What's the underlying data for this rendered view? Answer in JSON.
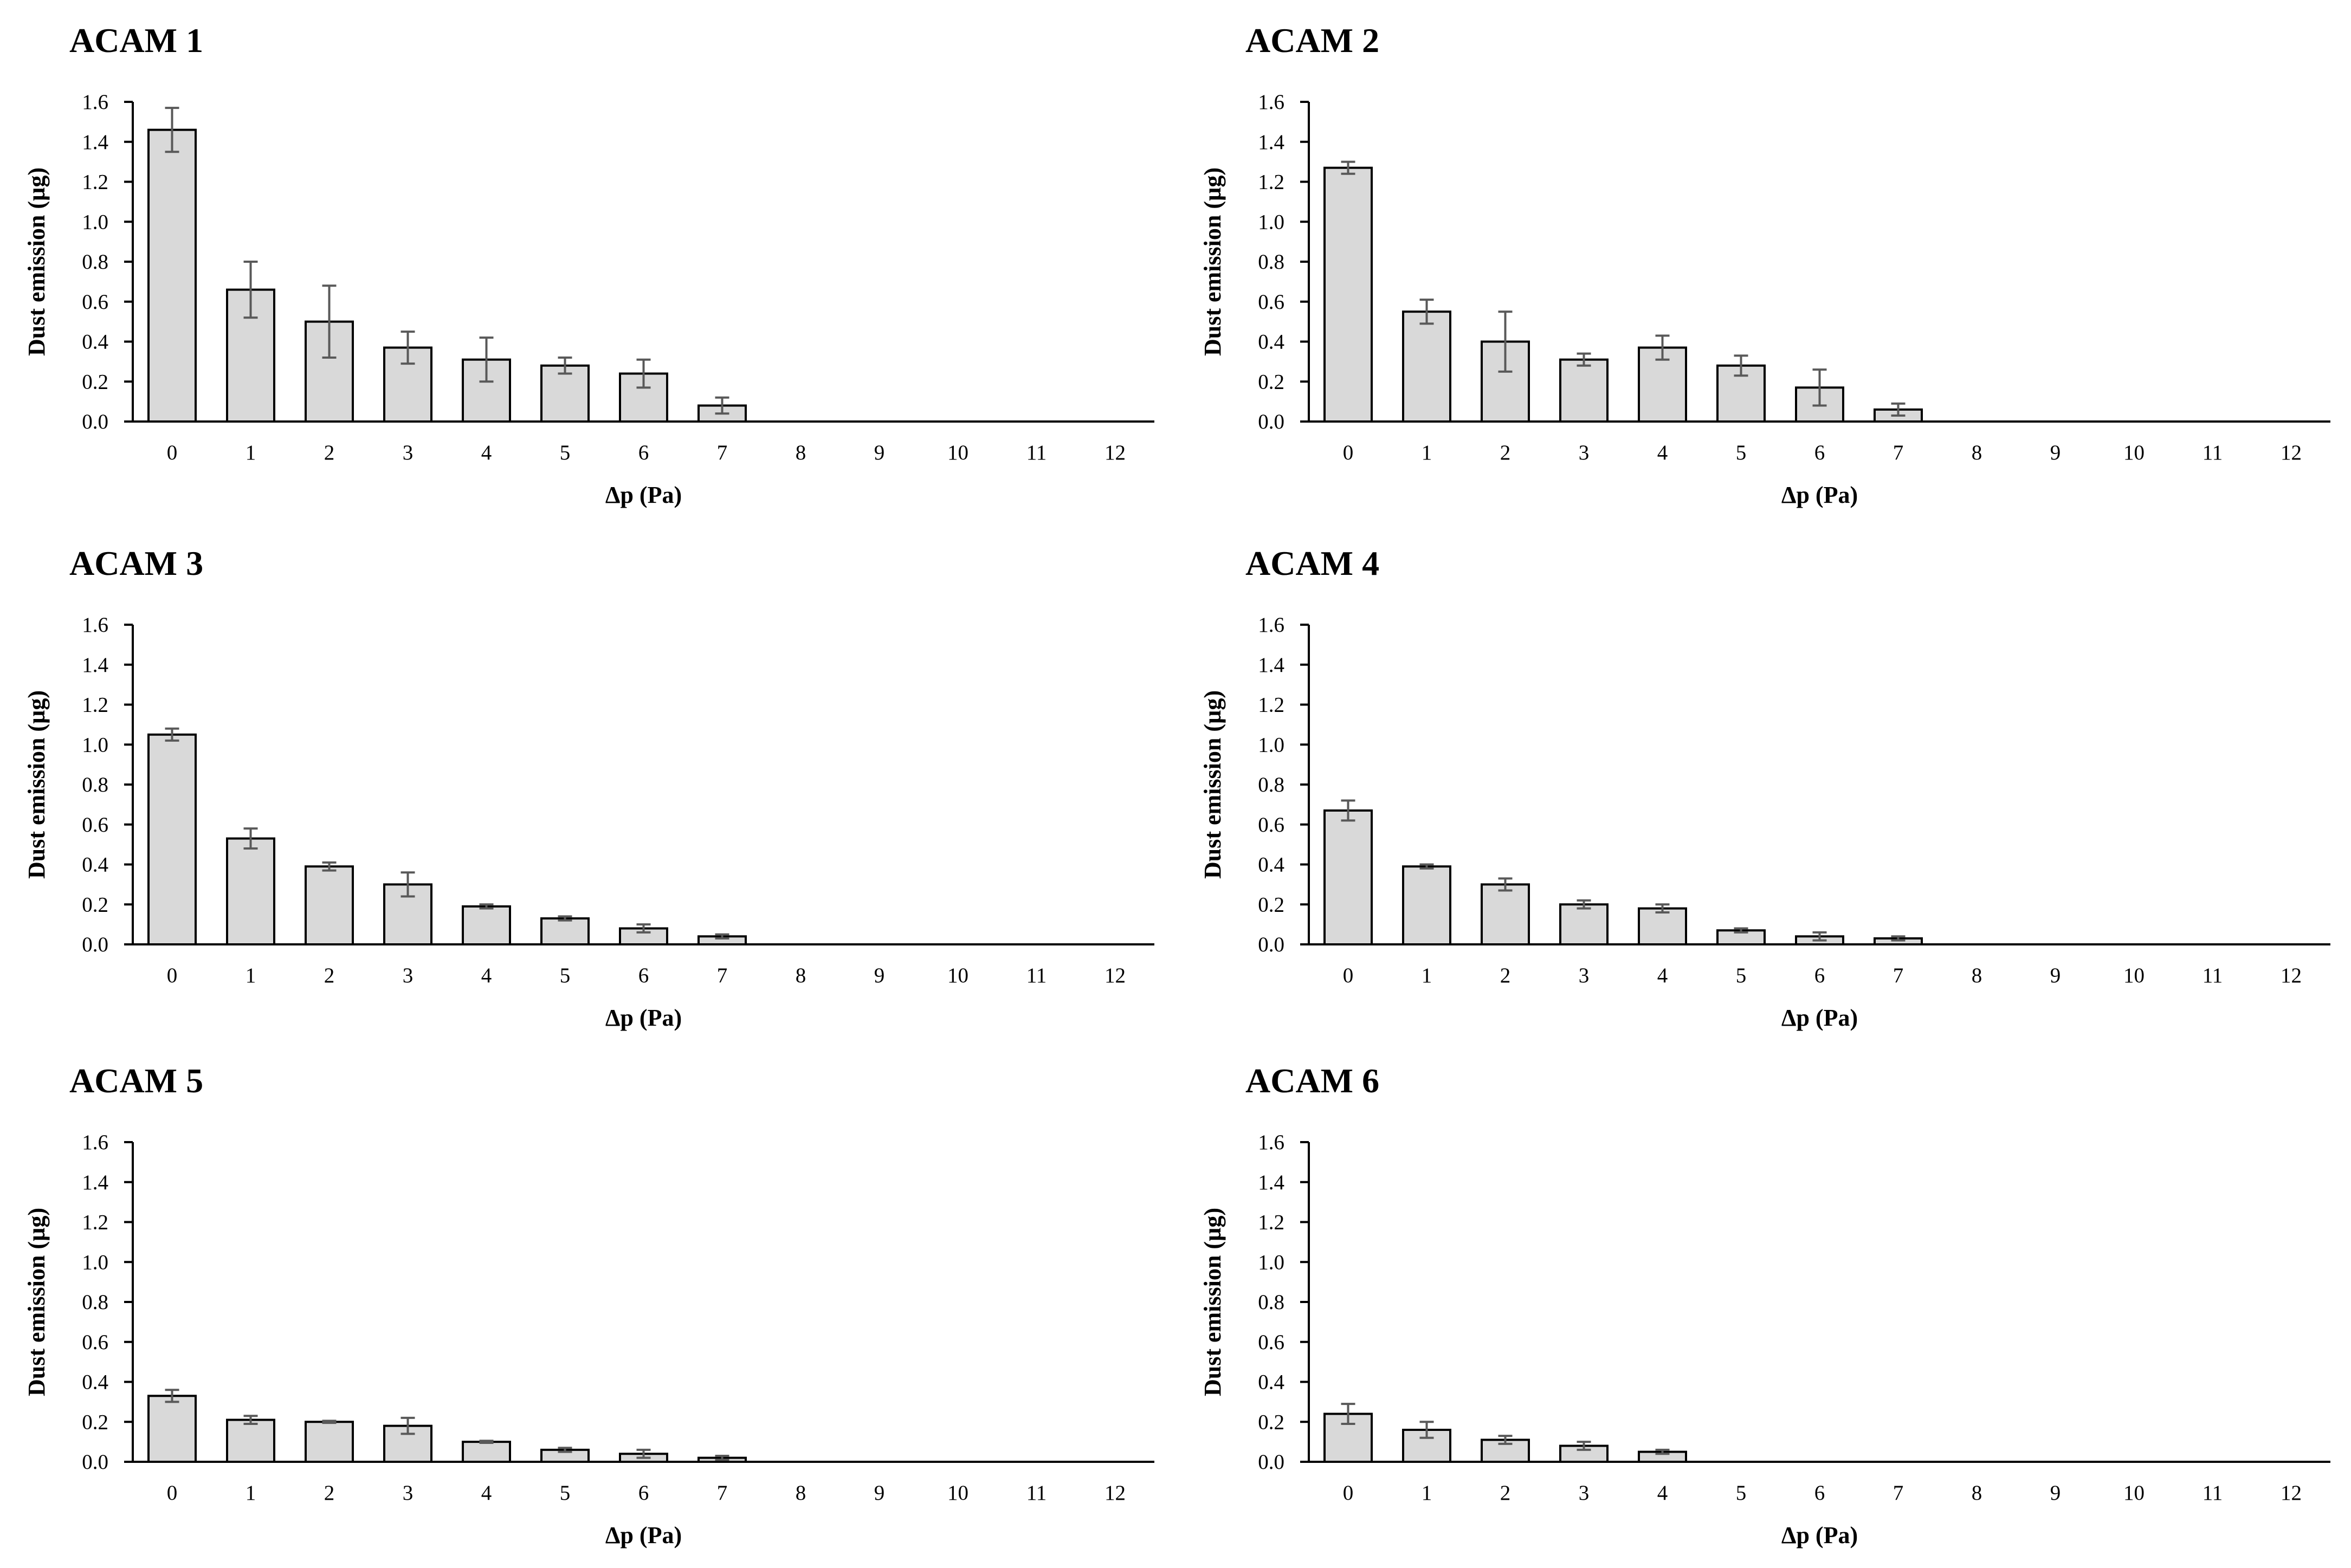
{
  "colors": {
    "bar_fill": "#d9d9d9",
    "bar_stroke": "#000000",
    "error_bar": "#595959",
    "axis": "#000000"
  },
  "chart_data": [
    {
      "type": "bar",
      "title": "ACAM 1",
      "xlabel": "Δp (Pa)",
      "ylabel": "Dust emission (µg)",
      "categories": [
        "0",
        "1",
        "2",
        "3",
        "4",
        "5",
        "6",
        "7",
        "8",
        "9",
        "10",
        "11",
        "12"
      ],
      "values": [
        1.46,
        0.66,
        0.5,
        0.37,
        0.31,
        0.28,
        0.24,
        0.08,
        0,
        0,
        0,
        0,
        0
      ],
      "errors": [
        0.11,
        0.14,
        0.18,
        0.08,
        0.11,
        0.04,
        0.07,
        0.04,
        0,
        0,
        0,
        0,
        0
      ],
      "ylim": [
        0,
        1.6
      ],
      "yticks": [
        "0.0",
        "0.2",
        "0.4",
        "0.6",
        "0.8",
        "1.0",
        "1.2",
        "1.4",
        "1.6"
      ]
    },
    {
      "type": "bar",
      "title": "ACAM 2",
      "xlabel": "Δp (Pa)",
      "ylabel": "Dust emission (µg)",
      "categories": [
        "0",
        "1",
        "2",
        "3",
        "4",
        "5",
        "6",
        "7",
        "8",
        "9",
        "10",
        "11",
        "12"
      ],
      "values": [
        1.27,
        0.55,
        0.4,
        0.31,
        0.37,
        0.28,
        0.17,
        0.06,
        0,
        0,
        0,
        0,
        0
      ],
      "errors": [
        0.03,
        0.06,
        0.15,
        0.03,
        0.06,
        0.05,
        0.09,
        0.03,
        0,
        0,
        0,
        0,
        0
      ],
      "ylim": [
        0,
        1.6
      ],
      "yticks": [
        "0.0",
        "0.2",
        "0.4",
        "0.6",
        "0.8",
        "1.0",
        "1.2",
        "1.4",
        "1.6"
      ]
    },
    {
      "type": "bar",
      "title": "ACAM 3",
      "xlabel": "Δp (Pa)",
      "ylabel": "Dust emission (µg)",
      "categories": [
        "0",
        "1",
        "2",
        "3",
        "4",
        "5",
        "6",
        "7",
        "8",
        "9",
        "10",
        "11",
        "12"
      ],
      "values": [
        1.05,
        0.53,
        0.39,
        0.3,
        0.19,
        0.13,
        0.08,
        0.04,
        0,
        0,
        0,
        0,
        0
      ],
      "errors": [
        0.03,
        0.05,
        0.02,
        0.06,
        0.01,
        0.01,
        0.02,
        0.01,
        0,
        0,
        0,
        0,
        0
      ],
      "ylim": [
        0,
        1.6
      ],
      "yticks": [
        "0.0",
        "0.2",
        "0.4",
        "0.6",
        "0.8",
        "1.0",
        "1.2",
        "1.4",
        "1.6"
      ]
    },
    {
      "type": "bar",
      "title": "ACAM 4",
      "xlabel": "Δp (Pa)",
      "ylabel": "Dust emission (µg)",
      "categories": [
        "0",
        "1",
        "2",
        "3",
        "4",
        "5",
        "6",
        "7",
        "8",
        "9",
        "10",
        "11",
        "12"
      ],
      "values": [
        0.67,
        0.39,
        0.3,
        0.2,
        0.18,
        0.07,
        0.04,
        0.03,
        0,
        0,
        0,
        0,
        0
      ],
      "errors": [
        0.05,
        0.01,
        0.03,
        0.02,
        0.02,
        0.01,
        0.02,
        0.01,
        0,
        0,
        0,
        0,
        0
      ],
      "ylim": [
        0,
        1.6
      ],
      "yticks": [
        "0.0",
        "0.2",
        "0.4",
        "0.6",
        "0.8",
        "1.0",
        "1.2",
        "1.4",
        "1.6"
      ]
    },
    {
      "type": "bar",
      "title": "ACAM 5",
      "xlabel": "Δp (Pa)",
      "ylabel": "Dust emission (µg)",
      "categories": [
        "0",
        "1",
        "2",
        "3",
        "4",
        "5",
        "6",
        "7",
        "8",
        "9",
        "10",
        "11",
        "12"
      ],
      "values": [
        0.33,
        0.21,
        0.2,
        0.18,
        0.1,
        0.06,
        0.04,
        0.02,
        0,
        0,
        0,
        0,
        0
      ],
      "errors": [
        0.03,
        0.02,
        0.005,
        0.04,
        0.005,
        0.01,
        0.02,
        0.01,
        0,
        0,
        0,
        0,
        0
      ],
      "ylim": [
        0,
        1.6
      ],
      "yticks": [
        "0.0",
        "0.2",
        "0.4",
        "0.6",
        "0.8",
        "1.0",
        "1.2",
        "1.4",
        "1.6"
      ]
    },
    {
      "type": "bar",
      "title": "ACAM 6",
      "xlabel": "Δp (Pa)",
      "ylabel": "Dust emission (µg)",
      "categories": [
        "0",
        "1",
        "2",
        "3",
        "4",
        "5",
        "6",
        "7",
        "8",
        "9",
        "10",
        "11",
        "12"
      ],
      "values": [
        0.24,
        0.16,
        0.11,
        0.08,
        0.05,
        0,
        0,
        0,
        0,
        0,
        0,
        0,
        0
      ],
      "errors": [
        0.05,
        0.04,
        0.02,
        0.02,
        0.01,
        0,
        0,
        0,
        0,
        0,
        0,
        0,
        0
      ],
      "ylim": [
        0,
        1.6
      ],
      "yticks": [
        "0.0",
        "0.2",
        "0.4",
        "0.6",
        "0.8",
        "1.0",
        "1.2",
        "1.4",
        "1.6"
      ]
    }
  ]
}
